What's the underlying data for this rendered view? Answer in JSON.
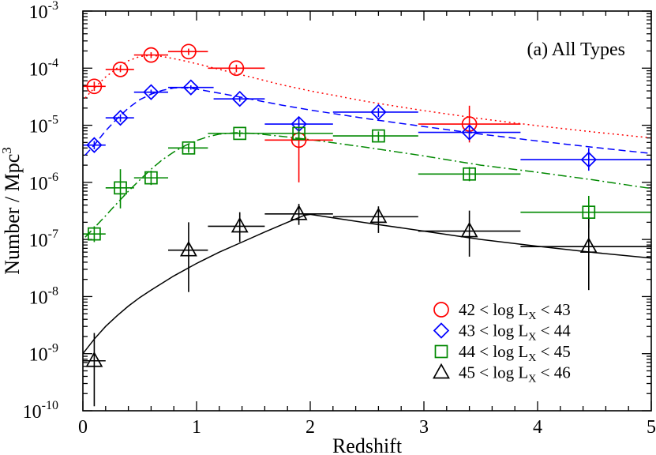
{
  "chart_data": {
    "type": "scatter",
    "panel_label": "(a) All Types",
    "xlabel": "Redshift",
    "ylabel_main": "Number / Mpc",
    "ylabel_sup": "3",
    "xlim": [
      0,
      5
    ],
    "ylim_log10": [
      -10,
      -3
    ],
    "x_ticks": [
      {
        "value": 0,
        "label": "0"
      },
      {
        "value": 1,
        "label": "1"
      },
      {
        "value": 2,
        "label": "2"
      },
      {
        "value": 3,
        "label": "3"
      },
      {
        "value": 4,
        "label": "4"
      },
      {
        "value": 5,
        "label": "5"
      }
    ],
    "y_ticks": [
      {
        "exp": -10,
        "base": "10",
        "sup": "-10"
      },
      {
        "exp": -9,
        "base": "10",
        "sup": "-9"
      },
      {
        "exp": -8,
        "base": "10",
        "sup": "-8"
      },
      {
        "exp": -7,
        "base": "10",
        "sup": "-7"
      },
      {
        "exp": -6,
        "base": "10",
        "sup": "-6"
      },
      {
        "exp": -5,
        "base": "10",
        "sup": "-5"
      },
      {
        "exp": -4,
        "base": "10",
        "sup": "-4"
      },
      {
        "exp": -3,
        "base": "10",
        "sup": "-3"
      }
    ],
    "series": [
      {
        "name": "42 < log LX < 43",
        "legend_prefix": "42 < log L",
        "legend_sub": "X",
        "legend_suffix": " < 43",
        "color": "#ff0000",
        "marker": "circle",
        "line_style": "dotted",
        "points": [
          {
            "x": 0.1,
            "xlo": 0.0,
            "xhi": 0.2,
            "y": 4.8e-05,
            "ylo": 4e-05,
            "yhi": 5.8e-05
          },
          {
            "x": 0.33,
            "xlo": 0.2,
            "xhi": 0.45,
            "y": 9.5e-05,
            "ylo": 8.5e-05,
            "yhi": 0.000108
          },
          {
            "x": 0.6,
            "xlo": 0.45,
            "xhi": 0.75,
            "y": 0.00017,
            "ylo": 0.00015,
            "yhi": 0.00019
          },
          {
            "x": 0.93,
            "xlo": 0.75,
            "xhi": 1.1,
            "y": 0.000195,
            "ylo": 0.00017,
            "yhi": 0.00022
          },
          {
            "x": 1.35,
            "xlo": 1.1,
            "xhi": 1.6,
            "y": 0.0001,
            "ylo": 8.5e-05,
            "yhi": 0.000115
          },
          {
            "x": 1.9,
            "xlo": 1.6,
            "xhi": 2.2,
            "y": 5.5e-06,
            "ylo": 1e-06,
            "yhi": 1.1e-05
          },
          {
            "x": 3.4,
            "xlo": 2.95,
            "xhi": 3.85,
            "y": 1.05e-05,
            "ylo": 5e-06,
            "yhi": 2.2e-05
          }
        ],
        "model_curve": [
          [
            0.02,
            3e-05
          ],
          [
            0.1,
            4.5e-05
          ],
          [
            0.2,
            7e-05
          ],
          [
            0.3,
            0.0001
          ],
          [
            0.4,
            0.000135
          ],
          [
            0.5,
            0.00016
          ],
          [
            0.6,
            0.000168
          ],
          [
            0.7,
            0.00016
          ],
          [
            0.85,
            0.00014
          ],
          [
            1.0,
            0.00012
          ],
          [
            1.25,
            9e-05
          ],
          [
            1.5,
            6.8e-05
          ],
          [
            1.75,
            5.1e-05
          ],
          [
            2.0,
            4e-05
          ],
          [
            2.5,
            2.6e-05
          ],
          [
            3.0,
            1.8e-05
          ],
          [
            3.5,
            1.3e-05
          ],
          [
            4.0,
            9.8e-06
          ],
          [
            4.5,
            7.6e-06
          ],
          [
            5.0,
            6e-06
          ]
        ]
      },
      {
        "name": "43 < log LX < 44",
        "legend_prefix": "43 < log L",
        "legend_sub": "X",
        "legend_suffix": " < 44",
        "color": "#0000ff",
        "marker": "diamond",
        "line_style": "dashed",
        "points": [
          {
            "x": 0.1,
            "xlo": 0.0,
            "xhi": 0.2,
            "y": 4.5e-06,
            "ylo": 3.8e-06,
            "yhi": 5.3e-06
          },
          {
            "x": 0.33,
            "xlo": 0.2,
            "xhi": 0.45,
            "y": 1.35e-05,
            "ylo": 1.15e-05,
            "yhi": 1.55e-05
          },
          {
            "x": 0.6,
            "xlo": 0.45,
            "xhi": 0.75,
            "y": 3.8e-05,
            "ylo": 3.4e-05,
            "yhi": 4.2e-05
          },
          {
            "x": 0.95,
            "xlo": 0.75,
            "xhi": 1.15,
            "y": 4.6e-05,
            "ylo": 4.2e-05,
            "yhi": 5e-05
          },
          {
            "x": 1.38,
            "xlo": 1.15,
            "xhi": 1.6,
            "y": 2.9e-05,
            "ylo": 2.6e-05,
            "yhi": 3.2e-05
          },
          {
            "x": 1.9,
            "xlo": 1.6,
            "xhi": 2.2,
            "y": 1.05e-05,
            "ylo": 7e-06,
            "yhi": 1.4e-05
          },
          {
            "x": 2.6,
            "xlo": 2.2,
            "xhi": 2.95,
            "y": 1.7e-05,
            "ylo": 1.4e-05,
            "yhi": 2e-05
          },
          {
            "x": 3.4,
            "xlo": 2.95,
            "xhi": 3.85,
            "y": 7.5e-06,
            "ylo": 5.5e-06,
            "yhi": 1e-05
          },
          {
            "x": 4.45,
            "xlo": 3.85,
            "xhi": 5.0,
            "y": 2.5e-06,
            "ylo": 1.6e-06,
            "yhi": 4e-06
          }
        ],
        "model_curve": [
          [
            0.02,
            3e-06
          ],
          [
            0.1,
            4.5e-06
          ],
          [
            0.2,
            8e-06
          ],
          [
            0.3,
            1.3e-05
          ],
          [
            0.4,
            2e-05
          ],
          [
            0.5,
            2.8e-05
          ],
          [
            0.6,
            3.5e-05
          ],
          [
            0.7,
            4.1e-05
          ],
          [
            0.8,
            4.5e-05
          ],
          [
            0.9,
            4.55e-05
          ],
          [
            1.0,
            4.3e-05
          ],
          [
            1.25,
            3.5e-05
          ],
          [
            1.5,
            2.8e-05
          ],
          [
            1.75,
            2.25e-05
          ],
          [
            2.0,
            1.85e-05
          ],
          [
            2.5,
            1.3e-05
          ],
          [
            3.0,
            9.5e-06
          ],
          [
            3.5,
            7e-06
          ],
          [
            4.0,
            5.3e-06
          ],
          [
            4.5,
            4.1e-06
          ],
          [
            5.0,
            3.2e-06
          ]
        ]
      },
      {
        "name": "44 < log LX < 45",
        "legend_prefix": "44 < log L",
        "legend_sub": "X",
        "legend_suffix": " < 45",
        "color": "#008800",
        "marker": "square",
        "line_style": "dashdot",
        "points": [
          {
            "x": 0.1,
            "xlo": 0.0,
            "xhi": 0.2,
            "y": 1.25e-07,
            "ylo": 9e-08,
            "yhi": 1.7e-07
          },
          {
            "x": 0.33,
            "xlo": 0.2,
            "xhi": 0.45,
            "y": 8e-07,
            "ylo": 3.5e-07,
            "yhi": 1.7e-06
          },
          {
            "x": 0.6,
            "xlo": 0.45,
            "xhi": 0.75,
            "y": 1.2e-06,
            "ylo": 9e-07,
            "yhi": 1.6e-06
          },
          {
            "x": 0.93,
            "xlo": 0.75,
            "xhi": 1.1,
            "y": 4e-06,
            "ylo": 3.3e-06,
            "yhi": 4.8e-06
          },
          {
            "x": 1.38,
            "xlo": 1.1,
            "xhi": 1.6,
            "y": 7.2e-06,
            "ylo": 6.3e-06,
            "yhi": 8.2e-06
          },
          {
            "x": 1.9,
            "xlo": 1.6,
            "xhi": 2.2,
            "y": 7.2e-06,
            "ylo": 5.8e-06,
            "yhi": 8.6e-06
          },
          {
            "x": 2.6,
            "xlo": 2.2,
            "xhi": 2.95,
            "y": 6.5e-06,
            "ylo": 5.3e-06,
            "yhi": 7.8e-06
          },
          {
            "x": 3.4,
            "xlo": 2.95,
            "xhi": 3.85,
            "y": 1.4e-06,
            "ylo": 1.05e-06,
            "yhi": 1.85e-06
          },
          {
            "x": 4.45,
            "xlo": 3.85,
            "xhi": 5.0,
            "y": 3e-07,
            "ylo": 1.6e-07,
            "yhi": 5.8e-07
          }
        ],
        "model_curve": [
          [
            0.02,
            1.1e-07
          ],
          [
            0.1,
            1.6e-07
          ],
          [
            0.2,
            2.6e-07
          ],
          [
            0.3,
            4.3e-07
          ],
          [
            0.4,
            7e-07
          ],
          [
            0.5,
            1.1e-06
          ],
          [
            0.6,
            1.7e-06
          ],
          [
            0.7,
            2.5e-06
          ],
          [
            0.8,
            3.4e-06
          ],
          [
            0.9,
            4.4e-06
          ],
          [
            1.0,
            5.4e-06
          ],
          [
            1.1,
            6.3e-06
          ],
          [
            1.2,
            7e-06
          ],
          [
            1.35,
            7.4e-06
          ],
          [
            1.5,
            7.2e-06
          ],
          [
            1.75,
            6.4e-06
          ],
          [
            2.0,
            5.6e-06
          ],
          [
            2.5,
            4.1e-06
          ],
          [
            3.0,
            2.9e-06
          ],
          [
            3.5,
            2e-06
          ],
          [
            4.0,
            1.5e-06
          ],
          [
            4.5,
            1.1e-06
          ],
          [
            5.0,
            7.8e-07
          ]
        ]
      },
      {
        "name": "45 < log LX < 46",
        "legend_prefix": "45 < log L",
        "legend_sub": "X",
        "legend_suffix": " < 46",
        "color": "#000000",
        "marker": "triangle",
        "line_style": "solid",
        "points": [
          {
            "x": 0.1,
            "xlo": 0.0,
            "xhi": 0.2,
            "y": 7.5e-10,
            "ylo": 1.2e-10,
            "yhi": 2.3e-09
          },
          {
            "x": 0.93,
            "xlo": 0.75,
            "xhi": 1.1,
            "y": 6.5e-08,
            "ylo": 1.2e-08,
            "yhi": 2e-07
          },
          {
            "x": 1.38,
            "xlo": 1.1,
            "xhi": 1.6,
            "y": 1.7e-07,
            "ylo": 9e-08,
            "yhi": 3e-07
          },
          {
            "x": 1.9,
            "xlo": 1.6,
            "xhi": 2.2,
            "y": 2.8e-07,
            "ylo": 1.8e-07,
            "yhi": 4.2e-07
          },
          {
            "x": 2.6,
            "xlo": 2.2,
            "xhi": 2.95,
            "y": 2.5e-07,
            "ylo": 1.3e-07,
            "yhi": 3.8e-07
          },
          {
            "x": 3.4,
            "xlo": 2.95,
            "xhi": 3.85,
            "y": 1.4e-07,
            "ylo": 5e-08,
            "yhi": 3.2e-07
          },
          {
            "x": 4.45,
            "xlo": 3.85,
            "xhi": 5.0,
            "y": 7.5e-08,
            "ylo": 1.3e-08,
            "yhi": 2.3e-07
          }
        ],
        "model_curve": [
          [
            0.0,
            1e-09
          ],
          [
            0.1,
            1.8e-09
          ],
          [
            0.2,
            3e-09
          ],
          [
            0.3,
            4.6e-09
          ],
          [
            0.4,
            6.8e-09
          ],
          [
            0.5,
            9.6e-09
          ],
          [
            0.6,
            1.3e-08
          ],
          [
            0.8,
            2.3e-08
          ],
          [
            1.0,
            3.8e-08
          ],
          [
            1.2,
            6e-08
          ],
          [
            1.4,
            9e-08
          ],
          [
            1.6,
            1.35e-07
          ],
          [
            1.8,
            2e-07
          ],
          [
            1.95,
            2.65e-07
          ],
          [
            2.0,
            2.75e-07
          ],
          [
            2.2,
            2.4e-07
          ],
          [
            2.5,
            1.95e-07
          ],
          [
            3.0,
            1.4e-07
          ],
          [
            3.5,
            1e-07
          ],
          [
            4.0,
            7.6e-08
          ],
          [
            4.5,
            5.9e-08
          ],
          [
            5.0,
            4.7e-08
          ]
        ]
      }
    ]
  }
}
